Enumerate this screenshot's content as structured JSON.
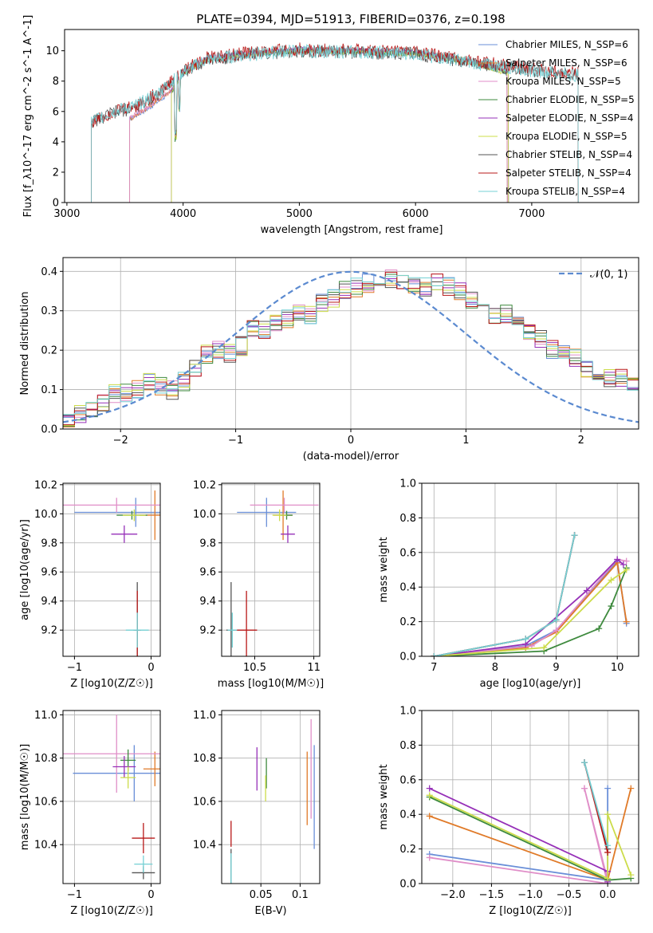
{
  "title": "PLATE=0394, MJD=51913, FIBERID=0376, z=0.198",
  "colors": [
    "#6a8fd8",
    "#e07a28",
    "#e08ec8",
    "#3e8a3e",
    "#9630b8",
    "#ccdc4a",
    "#555555",
    "#b81818",
    "#74d0d4"
  ],
  "chart_data": [
    {
      "id": "spectrum",
      "type": "line",
      "xlabel": "wavelength [Angstrom, rest frame]",
      "ylabel": "Flux [f_λ10^-17 erg cm^-2 s^-1 A^-1]",
      "xlim": [
        2980,
        7920
      ],
      "ylim": [
        0,
        11.4
      ],
      "xticks": [
        3000,
        4000,
        5000,
        6000,
        7000
      ],
      "yticks": [
        0,
        2,
        4,
        6,
        8,
        10
      ],
      "grid": false,
      "legend_position": "right",
      "series": [
        {
          "name": "Chabrier MILES, N_SSP=6",
          "x": [
            3540,
            3700,
            3900,
            4000,
            4200,
            4500,
            5000,
            5500,
            6000,
            6500,
            6750,
            6790
          ],
          "y": [
            5.5,
            6.2,
            7.3,
            8.5,
            9.4,
            9.7,
            10.0,
            9.9,
            9.8,
            9.2,
            8.7,
            8.5
          ]
        },
        {
          "name": "Salpeter MILES, N_SSP=6",
          "x": [
            3540,
            3700,
            3900,
            4000,
            4200,
            4500,
            5000,
            5500,
            6000,
            6500,
            6750,
            6790
          ],
          "y": [
            5.5,
            6.3,
            7.4,
            8.6,
            9.5,
            9.8,
            10.1,
            10.0,
            9.9,
            9.3,
            8.8,
            8.6
          ]
        },
        {
          "name": "Kroupa MILES, N_SSP=5",
          "x": [
            3540,
            3700,
            3900,
            4000,
            4200,
            4500,
            5000,
            5500,
            6000,
            6500,
            6750,
            6790
          ],
          "y": [
            5.6,
            6.3,
            7.4,
            8.6,
            9.5,
            9.8,
            10.1,
            10.0,
            9.9,
            9.2,
            8.7,
            8.5
          ]
        },
        {
          "name": "Chabrier ELODIE, N_SSP=5",
          "x": [
            3900,
            4000,
            4200,
            4500,
            5000,
            5500,
            6000,
            6500,
            6750,
            6800
          ],
          "y": [
            7.3,
            8.5,
            9.4,
            9.7,
            10.0,
            9.9,
            9.8,
            9.2,
            8.6,
            8.5
          ]
        },
        {
          "name": "Salpeter ELODIE, N_SSP=4",
          "x": [
            3900,
            4000,
            4200,
            4500,
            5000,
            5500,
            6000,
            6500,
            6750,
            6800
          ],
          "y": [
            7.4,
            8.6,
            9.5,
            9.8,
            10.1,
            10.0,
            9.9,
            9.3,
            8.7,
            8.6
          ]
        },
        {
          "name": "Kroupa ELODIE, N_SSP=5",
          "x": [
            3900,
            4000,
            4200,
            4500,
            5000,
            5500,
            6000,
            6500,
            6750,
            6800
          ],
          "y": [
            7.3,
            8.5,
            9.4,
            9.7,
            10.0,
            9.9,
            9.8,
            9.2,
            8.6,
            8.5
          ]
        },
        {
          "name": "Chabrier STELIB, N_SSP=4",
          "x": [
            3210,
            3400,
            3600,
            3800,
            4000,
            4200,
            4500,
            5000,
            5500,
            6000,
            6500,
            7000,
            7400
          ],
          "y": [
            5.3,
            5.9,
            6.3,
            7.2,
            8.6,
            9.4,
            9.7,
            10.0,
            9.9,
            9.8,
            9.2,
            8.7,
            8.4
          ]
        },
        {
          "name": "Salpeter STELIB, N_SSP=4",
          "x": [
            3210,
            3400,
            3600,
            3800,
            4000,
            4200,
            4500,
            5000,
            5500,
            6000,
            6500,
            7000,
            7400
          ],
          "y": [
            5.3,
            6.0,
            6.4,
            7.3,
            8.7,
            9.5,
            9.8,
            10.1,
            10.0,
            9.9,
            9.3,
            8.8,
            8.5
          ]
        },
        {
          "name": "Kroupa STELIB, N_SSP=4",
          "x": [
            3210,
            3400,
            3600,
            3800,
            4000,
            4200,
            4500,
            5000,
            5500,
            6000,
            6500,
            7000,
            7400
          ],
          "y": [
            5.4,
            6.0,
            6.4,
            7.3,
            8.6,
            9.4,
            9.7,
            10.0,
            9.9,
            9.8,
            9.2,
            8.7,
            8.4
          ]
        }
      ]
    },
    {
      "id": "residuals",
      "type": "histogram",
      "xlabel": "(data-model)/error",
      "ylabel": "Normed distribution",
      "xlim": [
        -2.5,
        2.5
      ],
      "ylim": [
        0,
        0.435
      ],
      "xticks": [
        -2,
        -1,
        0,
        1,
        2
      ],
      "yticks": [
        0.0,
        0.1,
        0.2,
        0.3,
        0.4
      ],
      "grid": true,
      "legend": "𝒩(0, 1)",
      "legend_position": "top-right",
      "bin_width": 0.1,
      "bin_start": -2.5,
      "series_values": [
        0.03,
        0.04,
        0.05,
        0.07,
        0.09,
        0.09,
        0.1,
        0.12,
        0.11,
        0.1,
        0.12,
        0.15,
        0.19,
        0.2,
        0.19,
        0.21,
        0.25,
        0.25,
        0.27,
        0.28,
        0.3,
        0.29,
        0.32,
        0.33,
        0.35,
        0.36,
        0.37,
        0.38,
        0.38,
        0.37,
        0.36,
        0.36,
        0.37,
        0.36,
        0.35,
        0.33,
        0.31,
        0.29,
        0.29,
        0.27,
        0.25,
        0.23,
        0.2,
        0.19,
        0.18,
        0.15,
        0.14,
        0.13,
        0.13,
        0.11,
        0.1,
        0.09,
        0.09,
        0.08,
        0.07,
        0.07,
        0.06,
        0.05,
        0.05,
        0.04,
        0.04,
        0.03,
        0.03,
        0.03,
        0.02,
        0.02,
        0.02,
        0.02,
        0.02,
        0.02
      ]
    },
    {
      "id": "age_vs_Z",
      "type": "errorbar",
      "xlabel": "Z [log10(Z/Z☉)]",
      "ylabel": "age  [log10(age/yr)]",
      "xlim": [
        -1.15,
        0.12
      ],
      "ylim": [
        9.02,
        10.21
      ],
      "xticks": [
        -1,
        0
      ],
      "yticks": [
        9.2,
        9.4,
        9.6,
        9.8,
        10.0,
        10.2
      ],
      "grid": true,
      "points": [
        {
          "x": -0.2,
          "y": 10.01,
          "xerr": 0.8,
          "yerr": 0.1
        },
        {
          "x": 0.05,
          "y": 9.99,
          "xerr": 0.2,
          "yerr": 0.17
        },
        {
          "x": -0.45,
          "y": 10.06,
          "xerr": 0.7,
          "yerr": 0.05
        },
        {
          "x": -0.25,
          "y": 9.99,
          "xerr": 0.2,
          "yerr": 0.03
        },
        {
          "x": -0.35,
          "y": 9.86,
          "xerr": 0.17,
          "yerr": 0.06
        },
        {
          "x": -0.22,
          "y": 9.99,
          "xerr": 0.15,
          "yerr": 0.04
        },
        {
          "x": -0.18,
          "y": 9.2,
          "xerr": 0.05,
          "yerr": 0.33
        },
        {
          "x": -0.18,
          "y": 9.2,
          "xerr": 0.03,
          "yerr": 0.27
        },
        {
          "x": -0.18,
          "y": 9.2,
          "xerr": 0.15,
          "yerr": 0.12
        }
      ]
    },
    {
      "id": "age_vs_mass",
      "type": "errorbar",
      "xlabel": "mass [log10(M/M☉)]",
      "ylabel": "",
      "xlim": [
        10.22,
        11.05
      ],
      "ylim": [
        9.02,
        10.21
      ],
      "xticks": [
        10.5,
        11.0
      ],
      "yticks": [
        9.2,
        9.4,
        9.6,
        9.8,
        10.0,
        10.2
      ],
      "grid": true,
      "points": [
        {
          "x": 10.6,
          "y": 10.01,
          "xerr": 0.25,
          "yerr": 0.1
        },
        {
          "x": 10.74,
          "y": 9.99,
          "xerr": 0.08,
          "yerr": 0.17
        },
        {
          "x": 10.75,
          "y": 10.06,
          "xerr": 0.29,
          "yerr": 0.05
        },
        {
          "x": 10.77,
          "y": 9.99,
          "xerr": 0.05,
          "yerr": 0.03
        },
        {
          "x": 10.78,
          "y": 9.86,
          "xerr": 0.06,
          "yerr": 0.06
        },
        {
          "x": 10.71,
          "y": 9.99,
          "xerr": 0.06,
          "yerr": 0.04
        },
        {
          "x": 10.3,
          "y": 9.2,
          "xerr": 0.04,
          "yerr": 0.33
        },
        {
          "x": 10.43,
          "y": 9.2,
          "xerr": 0.09,
          "yerr": 0.27
        },
        {
          "x": 10.31,
          "y": 9.2,
          "xerr": 0.04,
          "yerr": 0.12
        }
      ]
    },
    {
      "id": "mass_weight_vs_age",
      "type": "line",
      "xlabel": "age  [log10(age/yr)]",
      "ylabel": "mass weight",
      "xlim": [
        6.8,
        10.35
      ],
      "ylim": [
        0,
        1.0
      ],
      "xticks": [
        7,
        8,
        9,
        10
      ],
      "yticks": [
        0.0,
        0.2,
        0.4,
        0.6,
        0.8,
        1.0
      ],
      "grid": true,
      "series": [
        {
          "x": [
            7.0,
            8.5,
            9.0,
            10.0,
            10.15
          ],
          "y": [
            0.0,
            0.06,
            0.15,
            0.55,
            0.19
          ]
        },
        {
          "x": [
            7.0,
            8.5,
            9.0,
            10.0,
            10.15
          ],
          "y": [
            0.0,
            0.05,
            0.14,
            0.54,
            0.2
          ]
        },
        {
          "x": [
            7.0,
            8.6,
            9.0,
            10.0,
            10.15
          ],
          "y": [
            0.0,
            0.06,
            0.15,
            0.56,
            0.55
          ]
        },
        {
          "x": [
            7.0,
            8.8,
            9.7,
            9.9,
            10.15
          ],
          "y": [
            0.0,
            0.03,
            0.16,
            0.29,
            0.51
          ]
        },
        {
          "x": [
            7.0,
            8.5,
            9.5,
            10.0,
            10.1
          ],
          "y": [
            0.0,
            0.07,
            0.38,
            0.56,
            0.53
          ]
        },
        {
          "x": [
            7.0,
            8.8,
            9.9,
            10.15
          ],
          "y": [
            0.0,
            0.05,
            0.44,
            0.5
          ]
        },
        {
          "x": [
            7.0,
            8.5,
            9.0,
            9.3
          ],
          "y": [
            0.0,
            0.1,
            0.21,
            0.7
          ]
        },
        {
          "x": [
            7.0,
            8.5,
            9.0,
            9.3
          ],
          "y": [
            0.0,
            0.1,
            0.21,
            0.7
          ]
        },
        {
          "x": [
            7.0,
            8.5,
            9.0,
            9.3
          ],
          "y": [
            0.0,
            0.1,
            0.21,
            0.7
          ]
        }
      ]
    },
    {
      "id": "mass_vs_Z",
      "type": "errorbar",
      "xlabel": "Z [log10(Z/Z☉)]",
      "ylabel": "mass [log10(M/M☉)]",
      "xlim": [
        -1.15,
        0.12
      ],
      "ylim": [
        10.22,
        11.02
      ],
      "xticks": [
        -1,
        0
      ],
      "yticks": [
        10.4,
        10.6,
        10.8,
        11.0
      ],
      "grid": true,
      "points": [
        {
          "x": -0.22,
          "y": 10.73,
          "xerr": 0.8,
          "yerr": 0.13
        },
        {
          "x": 0.05,
          "y": 10.75,
          "xerr": 0.15,
          "yerr": 0.08
        },
        {
          "x": -0.45,
          "y": 10.82,
          "xerr": 0.7,
          "yerr": 0.18
        },
        {
          "x": -0.3,
          "y": 10.79,
          "xerr": 0.1,
          "yerr": 0.05
        },
        {
          "x": -0.35,
          "y": 10.76,
          "xerr": 0.15,
          "yerr": 0.05
        },
        {
          "x": -0.3,
          "y": 10.71,
          "xerr": 0.1,
          "yerr": 0.05
        },
        {
          "x": -0.1,
          "y": 10.27,
          "xerr": 0.15,
          "yerr": 0.03
        },
        {
          "x": -0.1,
          "y": 10.43,
          "xerr": 0.15,
          "yerr": 0.07
        },
        {
          "x": -0.1,
          "y": 10.31,
          "xerr": 0.12,
          "yerr": 0.04
        }
      ]
    },
    {
      "id": "mass_vs_EBV",
      "type": "errorbar",
      "xlabel": "E(B-V)",
      "ylabel": "",
      "xlim": [
        0.0,
        0.125
      ],
      "ylim": [
        10.22,
        11.02
      ],
      "xticks": [
        0.05,
        0.1
      ],
      "yticks": [
        10.4,
        10.6,
        10.8,
        11.0
      ],
      "grid": true,
      "points": [
        {
          "x": 0.118,
          "y": 10.62,
          "xerr": 0,
          "yerr": 0.24
        },
        {
          "x": 0.109,
          "y": 10.66,
          "xerr": 0,
          "yerr": 0.17
        },
        {
          "x": 0.114,
          "y": 10.75,
          "xerr": 0,
          "yerr": 0.23
        },
        {
          "x": 0.057,
          "y": 10.73,
          "xerr": 0,
          "yerr": 0.07
        },
        {
          "x": 0.045,
          "y": 10.75,
          "xerr": 0,
          "yerr": 0.1
        },
        {
          "x": 0.056,
          "y": 10.66,
          "xerr": 0,
          "yerr": 0.06
        },
        {
          "x": 0.012,
          "y": 10.28,
          "xerr": 0,
          "yerr": 0.1
        },
        {
          "x": 0.012,
          "y": 10.45,
          "xerr": 0,
          "yerr": 0.06
        },
        {
          "x": 0.012,
          "y": 10.29,
          "xerr": 0,
          "yerr": 0.07
        }
      ]
    },
    {
      "id": "mass_weight_vs_Z",
      "type": "line",
      "xlabel": "Z [log10(Z/Z☉)]",
      "ylabel": "mass weight",
      "xlim": [
        -2.4,
        0.4
      ],
      "ylim": [
        0,
        1.0
      ],
      "xticks": [
        -2.0,
        -1.5,
        -1.0,
        -0.5,
        0.0
      ],
      "yticks": [
        0.0,
        0.2,
        0.4,
        0.6,
        0.8,
        1.0
      ],
      "grid": true,
      "series": [
        {
          "x": [
            -2.3,
            0.0,
            0.0
          ],
          "y": [
            0.17,
            0.02,
            0.55
          ]
        },
        {
          "x": [
            -2.3,
            0.0,
            0.3
          ],
          "y": [
            0.39,
            0.02,
            0.55
          ]
        },
        {
          "x": [
            -2.3,
            0.0,
            -0.3,
            -0.3,
            0.0
          ],
          "y": [
            0.15,
            0.0,
            0.55,
            0.55,
            0.02
          ]
        },
        {
          "x": [
            -2.3,
            0.0,
            0.3
          ],
          "y": [
            0.5,
            0.02,
            0.03
          ]
        },
        {
          "x": [
            -2.3,
            0.0,
            0.0
          ],
          "y": [
            0.55,
            0.07,
            0.01
          ]
        },
        {
          "x": [
            -2.3,
            0.0,
            0.0,
            0.3
          ],
          "y": [
            0.51,
            0.03,
            0.4,
            0.05
          ]
        },
        {
          "x": [
            -0.3,
            0.0
          ],
          "y": [
            0.7,
            0.2
          ]
        },
        {
          "x": [
            -0.3,
            0.0
          ],
          "y": [
            0.7,
            0.18
          ]
        },
        {
          "x": [
            -0.3,
            0.0
          ],
          "y": [
            0.7,
            0.22
          ]
        }
      ]
    }
  ]
}
